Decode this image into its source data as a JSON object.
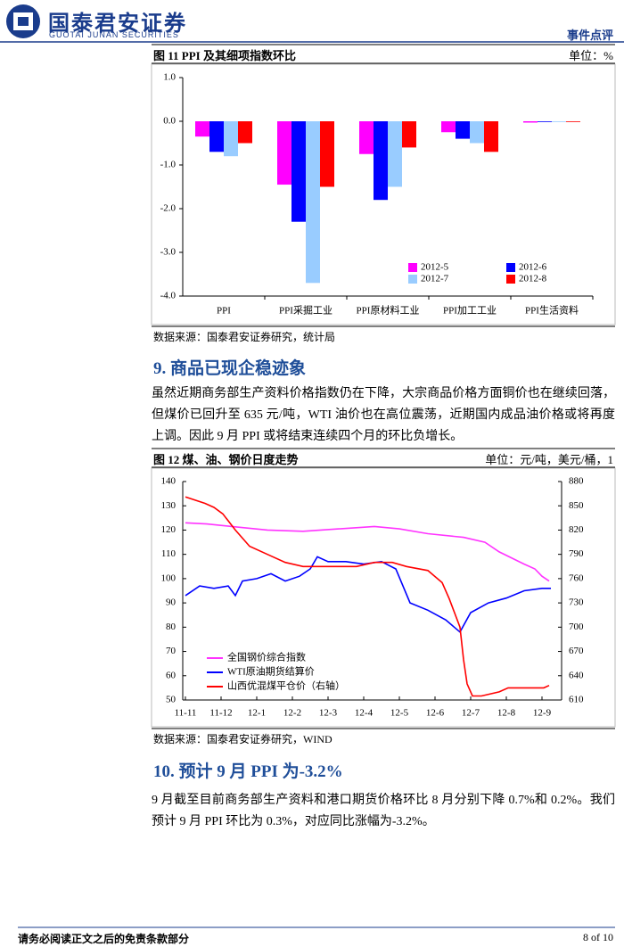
{
  "header": {
    "company": "国泰君安证券",
    "company_en": "GUOTAI JUNAN SECURITIES",
    "report_type": "事件点评"
  },
  "figure11": {
    "title": "图 11 PPI 及其细项指数环比",
    "unit": "单位：%",
    "source": "数据来源：国泰君安证券研究，统计局",
    "chart_data": {
      "type": "bar",
      "categories": [
        "PPI",
        "PPI采掘工业",
        "PPI原材料工业",
        "PPI加工工业",
        "PPI生活资料"
      ],
      "series": [
        {
          "name": "2012-5",
          "color": "#ff00ff",
          "values": [
            -0.35,
            -1.45,
            -0.75,
            -0.25,
            -0.03
          ]
        },
        {
          "name": "2012-6",
          "color": "#0000ff",
          "values": [
            -0.7,
            -2.3,
            -1.8,
            -0.4,
            0
          ]
        },
        {
          "name": "2012-7",
          "color": "#99ccff",
          "values": [
            -0.8,
            -3.7,
            -1.5,
            -0.5,
            0
          ]
        },
        {
          "name": "2012-8",
          "color": "#ff0000",
          "values": [
            -0.5,
            -1.5,
            -0.6,
            -0.7,
            0
          ]
        }
      ],
      "ylim": [
        -4,
        1
      ],
      "yticks": [
        {
          "value": 1,
          "label": "1.0"
        },
        {
          "value": 0,
          "label": "0.0"
        },
        {
          "value": -1,
          "label": "-1.0"
        },
        {
          "value": -2,
          "label": "-2.0"
        },
        {
          "value": -3,
          "label": "-3.0"
        },
        {
          "value": -4,
          "label": "-4.0"
        }
      ],
      "legend": "lower right"
    }
  },
  "section9": {
    "heading": "9.  商品已现企稳迹象",
    "paragraph": "虽然近期商务部生产资料价格指数仍在下降，大宗商品价格方面铜价也在继续回落，但煤价已回升至 635 元/吨，WTI 油价也在高位震荡，近期国内成品油价格或将再度上调。因此 9 月 PPI 或将结束连续四个月的环比负增长。"
  },
  "figure12": {
    "title": "图 12 煤、油、钢价日度走势",
    "unit": "单位：元/吨，美元/桶，1",
    "source": "数据来源：国泰君安证券研究，WIND",
    "chart_data": {
      "type": "line",
      "xlim": [
        -0.075,
        10.55
      ],
      "xticks": [
        {
          "value": 0,
          "label": "11-11"
        },
        {
          "value": 1,
          "label": "11-12"
        },
        {
          "value": 2,
          "label": "12-1"
        },
        {
          "value": 3,
          "label": "12-2"
        },
        {
          "value": 4,
          "label": "12-3"
        },
        {
          "value": 5,
          "label": "12-4"
        },
        {
          "value": 6,
          "label": "12-5"
        },
        {
          "value": 7,
          "label": "12-6"
        },
        {
          "value": 8,
          "label": "12-7"
        },
        {
          "value": 9,
          "label": "12-8"
        },
        {
          "value": 10,
          "label": "12-9"
        }
      ],
      "ylim": [
        50,
        140
      ],
      "yticks": [
        140,
        130,
        120,
        110,
        100,
        90,
        80,
        70,
        60,
        50
      ],
      "y2lim": [
        610,
        880
      ],
      "y2ticks": [
        880,
        850,
        820,
        790,
        760,
        730,
        700,
        670,
        640,
        610
      ],
      "series": [
        {
          "name": "全国钢价综合指数",
          "color": "#ff33ff",
          "axis": "y",
          "x": [
            0,
            0.6,
            1.3,
            2.3,
            3.3,
            4.3,
            5.3,
            6.0,
            6.8,
            7.8,
            8.4,
            8.8,
            9.5,
            9.8,
            10.0,
            10.2
          ],
          "values": [
            123,
            122.5,
            121.5,
            120,
            119.5,
            120.5,
            121.5,
            120.5,
            118.5,
            117,
            115,
            111,
            106,
            104,
            101,
            99
          ]
        },
        {
          "name": "WTI原油期货结算价",
          "color": "#0000ff",
          "axis": "y",
          "x": [
            0,
            0.4,
            0.8,
            1.2,
            1.4,
            1.6,
            2.0,
            2.4,
            2.8,
            3.2,
            3.5,
            3.7,
            4.0,
            4.5,
            5.0,
            5.5,
            5.9,
            6.3,
            6.8,
            7.3,
            7.7,
            8.0,
            8.5,
            9.0,
            9.5,
            10.0,
            10.25
          ],
          "values": [
            93,
            97,
            96,
            97,
            93,
            99,
            100,
            102,
            99,
            101,
            104,
            109,
            107,
            107,
            106,
            107,
            104,
            90,
            87,
            83,
            78,
            86,
            90,
            92,
            95,
            96,
            96
          ]
        },
        {
          "name": "山西优混煤平仓价（右轴）",
          "color": "#ff0000",
          "axis": "y2",
          "x": [
            0,
            0.55,
            0.8,
            1.05,
            1.4,
            1.8,
            2.3,
            2.8,
            3.3,
            4.8,
            5.3,
            5.8,
            6.2,
            6.8,
            7.2,
            7.4,
            7.7,
            7.8,
            7.9,
            8.05,
            8.3,
            8.8,
            9.05,
            9.8,
            10.05,
            10.2
          ],
          "values": [
            861,
            853,
            848,
            840,
            820,
            800,
            790,
            780,
            775,
            775,
            780,
            780,
            775,
            770,
            755,
            735,
            700,
            660,
            630,
            615,
            615,
            620,
            625,
            625,
            625,
            628
          ]
        }
      ],
      "legend": "lower left"
    }
  },
  "section10": {
    "heading": "10. 预计 9 月 PPI 为-3.2%",
    "paragraph": "9 月截至目前商务部生产资料和港口期货价格环比 8 月分别下降 0.7%和 0.2%。我们预计 9 月 PPI 环比为 0.3%，对应同比涨幅为-3.2%。"
  },
  "footer": {
    "disclaimer": "请务必阅读正文之后的免责条款部分",
    "page": "8 of 10"
  }
}
